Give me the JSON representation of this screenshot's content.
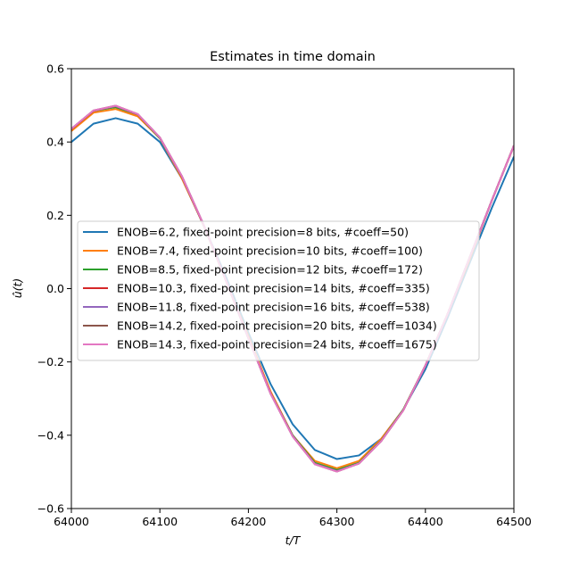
{
  "chart_data": {
    "type": "line",
    "title": "Estimates in time domain",
    "xlabel": "t/T",
    "ylabel": "û(t)",
    "xlim": [
      64000,
      64500
    ],
    "ylim": [
      -0.6,
      0.6
    ],
    "xticks": [
      64000,
      64100,
      64200,
      64300,
      64400,
      64500
    ],
    "yticks": [
      -0.6,
      -0.4,
      -0.2,
      0.0,
      0.2,
      0.4,
      0.6
    ],
    "xtick_labels": [
      "64000",
      "64100",
      "64200",
      "64300",
      "64400",
      "64500"
    ],
    "ytick_labels": [
      "−0.6",
      "−0.4",
      "−0.2",
      "0.0",
      "0.2",
      "0.4",
      "0.6"
    ],
    "grid": false,
    "legend_position": "center-left",
    "x": [
      64000,
      64025,
      64050,
      64075,
      64100,
      64125,
      64150,
      64175,
      64200,
      64225,
      64250,
      64275,
      64300,
      64325,
      64350,
      64375,
      64400,
      64425,
      64450,
      64475,
      64500
    ],
    "series": [
      {
        "name": "ENOB=6.2, fixed-point precision=8 bits, #coeff=50)",
        "color": "#1f77b4",
        "values": [
          0.4,
          0.45,
          0.465,
          0.45,
          0.4,
          0.3,
          0.17,
          0.03,
          -0.12,
          -0.26,
          -0.37,
          -0.44,
          -0.465,
          -0.455,
          -0.41,
          -0.33,
          -0.22,
          -0.08,
          0.07,
          0.22,
          0.36
        ]
      },
      {
        "name": "ENOB=7.4, fixed-point precision=10 bits, #coeff=100)",
        "color": "#ff7f0e",
        "values": [
          0.43,
          0.48,
          0.49,
          0.47,
          0.41,
          0.3,
          0.17,
          0.02,
          -0.13,
          -0.28,
          -0.4,
          -0.47,
          -0.49,
          -0.47,
          -0.41,
          -0.33,
          -0.21,
          -0.07,
          0.08,
          0.24,
          0.39
        ]
      },
      {
        "name": "ENOB=8.5, fixed-point precision=12 bits, #coeff=172)",
        "color": "#2ca02c",
        "values": [
          0.435,
          0.485,
          0.495,
          0.475,
          0.41,
          0.305,
          0.17,
          0.02,
          -0.135,
          -0.285,
          -0.4,
          -0.475,
          -0.495,
          -0.475,
          -0.415,
          -0.33,
          -0.21,
          -0.07,
          0.085,
          0.24,
          0.39
        ]
      },
      {
        "name": "ENOB=10.3, fixed-point precision=14 bits, #coeff=335)",
        "color": "#d62728",
        "values": [
          0.435,
          0.485,
          0.498,
          0.475,
          0.412,
          0.305,
          0.17,
          0.02,
          -0.135,
          -0.285,
          -0.402,
          -0.478,
          -0.498,
          -0.477,
          -0.416,
          -0.332,
          -0.21,
          -0.07,
          0.085,
          0.24,
          0.39
        ]
      },
      {
        "name": "ENOB=11.8, fixed-point precision=16 bits, #coeff=538)",
        "color": "#9467bd",
        "values": [
          0.436,
          0.486,
          0.498,
          0.476,
          0.412,
          0.306,
          0.171,
          0.02,
          -0.135,
          -0.286,
          -0.402,
          -0.478,
          -0.498,
          -0.477,
          -0.416,
          -0.332,
          -0.21,
          -0.07,
          0.085,
          0.24,
          0.39
        ]
      },
      {
        "name": "ENOB=14.2, fixed-point precision=20 bits, #coeff=1034)",
        "color": "#8c564b",
        "values": [
          0.436,
          0.486,
          0.499,
          0.476,
          0.412,
          0.306,
          0.171,
          0.02,
          -0.135,
          -0.286,
          -0.403,
          -0.479,
          -0.499,
          -0.477,
          -0.416,
          -0.332,
          -0.21,
          -0.07,
          0.085,
          0.24,
          0.39
        ]
      },
      {
        "name": "ENOB=14.3, fixed-point precision=24 bits, #coeff=1675)",
        "color": "#e377c2",
        "values": [
          0.436,
          0.486,
          0.499,
          0.476,
          0.412,
          0.306,
          0.171,
          0.02,
          -0.135,
          -0.286,
          -0.403,
          -0.479,
          -0.499,
          -0.477,
          -0.416,
          -0.332,
          -0.21,
          -0.07,
          0.085,
          0.24,
          0.39
        ]
      }
    ]
  }
}
